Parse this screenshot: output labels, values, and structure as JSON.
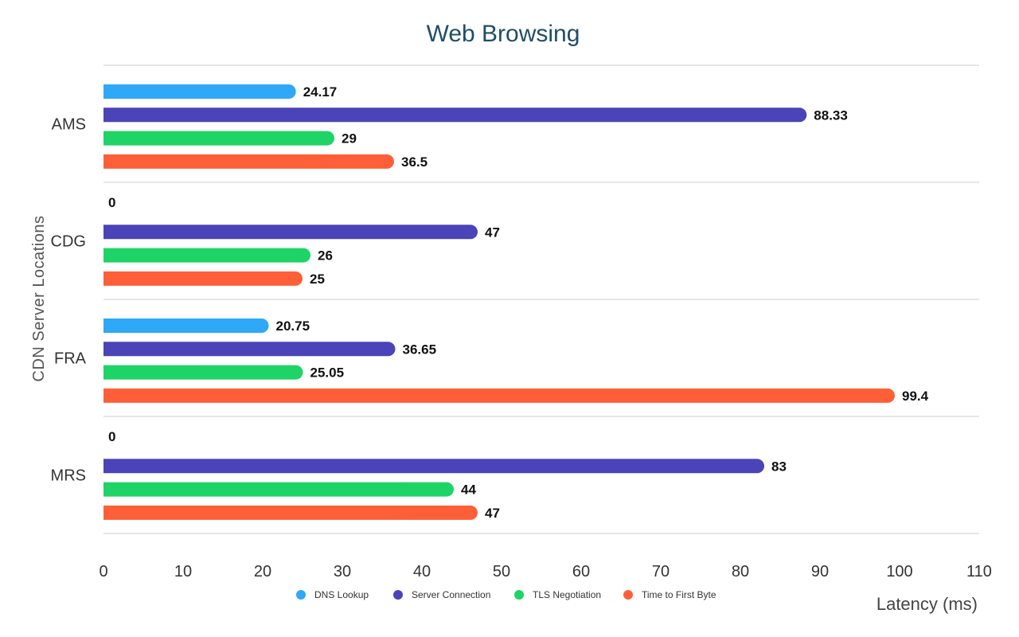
{
  "chart_data": {
    "type": "bar",
    "orientation": "horizontal",
    "title": "Web Browsing",
    "xlabel": "Latency (ms)",
    "ylabel": "CDN Server Locations",
    "categories": [
      "AMS",
      "CDG",
      "FRA",
      "MRS"
    ],
    "xlim": [
      0,
      110
    ],
    "ticks": [
      0,
      10,
      20,
      30,
      40,
      50,
      60,
      70,
      80,
      90,
      100,
      110
    ],
    "grid": "horizontal separators",
    "legend": "bottom",
    "series": [
      {
        "name": "DNS Lookup",
        "color": "#2ea8f7",
        "values": [
          24.17,
          0,
          20.75,
          0
        ]
      },
      {
        "name": "Server Connection",
        "color": "#4b44b8",
        "values": [
          88.33,
          47,
          36.65,
          83
        ]
      },
      {
        "name": "TLS Negotiation",
        "color": "#1fd466",
        "values": [
          29,
          26,
          25.05,
          44
        ]
      },
      {
        "name": "Time to First Byte",
        "color": "#fe5f38",
        "values": [
          36.5,
          25,
          99.4,
          47
        ]
      }
    ]
  }
}
